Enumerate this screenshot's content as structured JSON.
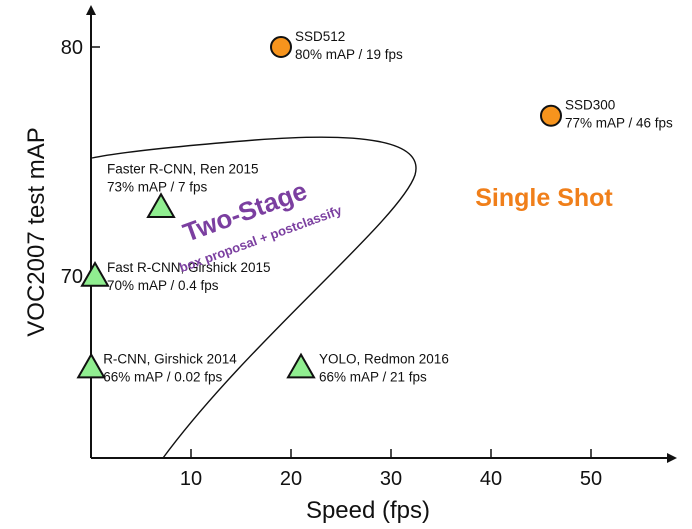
{
  "chart_data": {
    "type": "scatter",
    "title": "",
    "xlabel": "Speed (fps)",
    "ylabel": "VOC2007 test mAP",
    "xlim": [
      0,
      57
    ],
    "ylim": [
      62,
      81.5
    ],
    "x_ticks": [
      10,
      20,
      30,
      40,
      50
    ],
    "y_ticks": [
      70,
      80
    ],
    "grid": false,
    "points": [
      {
        "name": "SSD512",
        "detail": "80% mAP / 19 fps",
        "x": 19,
        "y": 80,
        "marker": "circle",
        "color": "#F7941D"
      },
      {
        "name": "SSD300",
        "detail": "77% mAP / 46 fps",
        "x": 46,
        "y": 77,
        "marker": "circle",
        "color": "#F7941D"
      },
      {
        "name": "Faster R-CNN, Ren 2015",
        "detail": "73% mAP / 7 fps",
        "x": 7,
        "y": 73,
        "marker": "triangle",
        "color": "#90EE90"
      },
      {
        "name": "Fast R-CNN, Girshick 2015",
        "detail": "70% mAP / 0.4 fps",
        "x": 0.4,
        "y": 70,
        "marker": "triangle",
        "color": "#90EE90"
      },
      {
        "name": "R-CNN, Girshick 2014",
        "detail": "66% mAP / 0.02 fps",
        "x": 0.02,
        "y": 66,
        "marker": "triangle",
        "color": "#90EE90"
      },
      {
        "name": "YOLO, Redmon 2016",
        "detail": "66% mAP / 21 fps",
        "x": 21,
        "y": 66,
        "marker": "triangle",
        "color": "#90EE90"
      }
    ],
    "regions": [
      {
        "label": "Two-Stage",
        "sublabel": "box proposal + postclassify",
        "color": "#7B3FA0"
      },
      {
        "label": "Single Shot",
        "color": "#F07F1A"
      }
    ]
  }
}
